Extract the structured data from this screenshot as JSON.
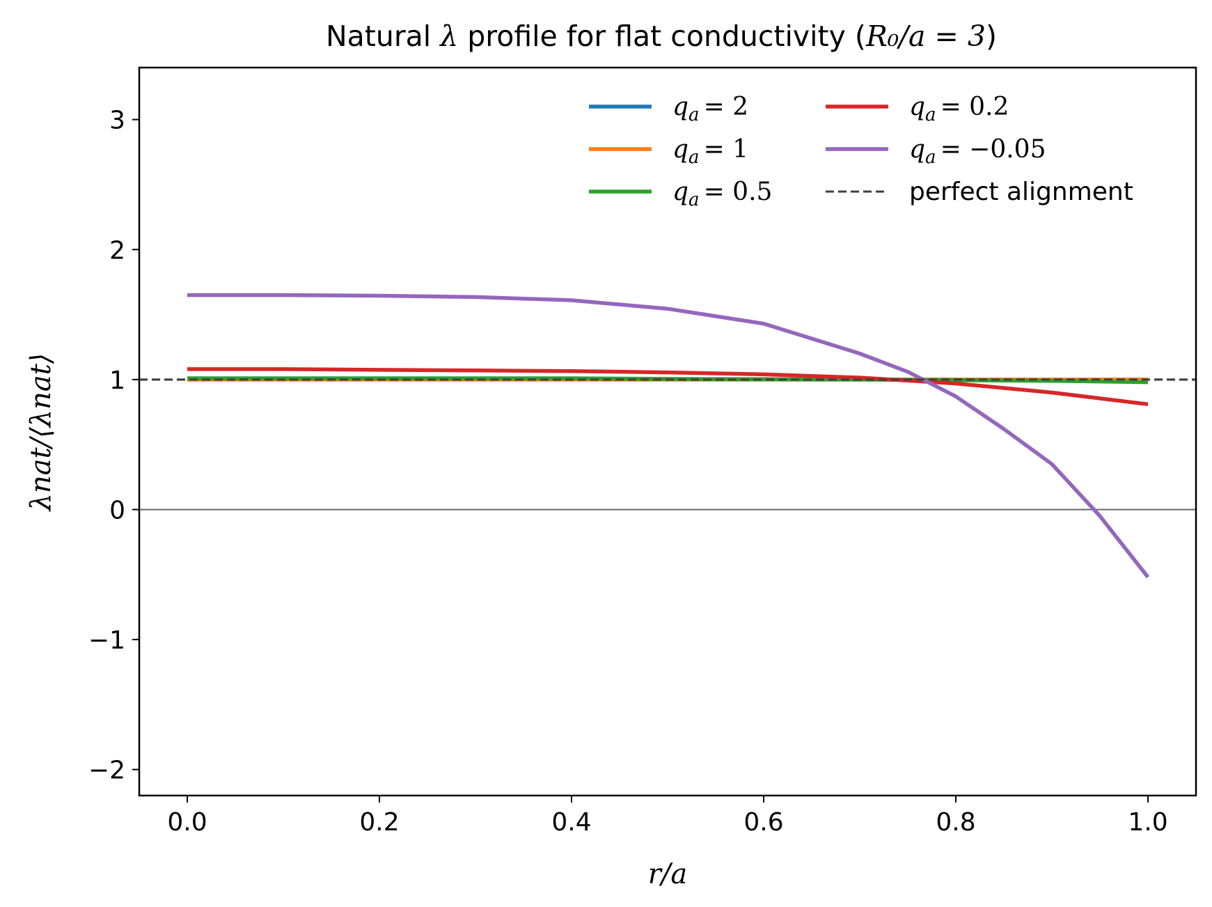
{
  "chart_data": {
    "type": "line",
    "title": {
      "prefix": "Natural ",
      "symbol": "λ",
      "mid": " profile for flat conductivity (",
      "math": "R₀/a = 3",
      "suffix": ")"
    },
    "xlabel": "r/a",
    "ylabel": "λnat/⟨λnat⟩",
    "xlim": [
      -0.05,
      1.05
    ],
    "ylim": [
      -2.2,
      3.4
    ],
    "xticks": [
      "0.0",
      "0.2",
      "0.4",
      "0.6",
      "0.8",
      "1.0"
    ],
    "xtick_values": [
      0.0,
      0.2,
      0.4,
      0.6,
      0.8,
      1.0
    ],
    "yticks": [
      "−2",
      "−1",
      "0",
      "1",
      "2",
      "3"
    ],
    "ytick_values": [
      -2,
      -1,
      0,
      1,
      2,
      3
    ],
    "grid": false,
    "legend_position": "top-right",
    "legend_columns": 2,
    "reference_lines": [
      {
        "name": "perfect alignment",
        "y": 1,
        "style": "dashed",
        "color": "#3f3f3f"
      },
      {
        "name": "",
        "y": 0,
        "style": "solid",
        "color": "#666666"
      }
    ],
    "series": [
      {
        "name": "q_a = 2",
        "label": {
          "var": "q",
          "sub": "a",
          "rhs": "= 2"
        },
        "color": "#1f77b4",
        "x": [
          0,
          0.1,
          0.2,
          0.3,
          0.4,
          0.5,
          0.6,
          0.7,
          0.8,
          0.9,
          1.0
        ],
        "y": [
          1.0,
          1.0,
          1.0,
          1.0,
          1.0,
          1.0,
          1.0,
          1.0,
          1.0,
          1.0,
          1.0
        ]
      },
      {
        "name": "q_a = 1",
        "label": {
          "var": "q",
          "sub": "a",
          "rhs": "= 1"
        },
        "color": "#ff7f0e",
        "x": [
          0,
          0.1,
          0.2,
          0.3,
          0.4,
          0.5,
          0.6,
          0.7,
          0.8,
          0.9,
          1.0
        ],
        "y": [
          1.0,
          1.0,
          1.0,
          1.0,
          1.0,
          1.0,
          1.0,
          1.0,
          1.0,
          1.0,
          1.0
        ]
      },
      {
        "name": "q_a = 0.5",
        "label": {
          "var": "q",
          "sub": "a",
          "rhs": "= 0.5"
        },
        "color": "#2ca02c",
        "x": [
          0,
          0.1,
          0.2,
          0.3,
          0.4,
          0.5,
          0.6,
          0.7,
          0.8,
          0.9,
          1.0
        ],
        "y": [
          1.01,
          1.01,
          1.01,
          1.01,
          1.01,
          1.005,
          1.003,
          1.0,
          0.995,
          0.99,
          0.98
        ]
      },
      {
        "name": "q_a = 0.2",
        "label": {
          "var": "q",
          "sub": "a",
          "rhs": "= 0.2"
        },
        "color": "#d62728",
        "x": [
          0,
          0.1,
          0.2,
          0.3,
          0.4,
          0.5,
          0.6,
          0.7,
          0.8,
          0.9,
          1.0
        ],
        "y": [
          1.08,
          1.08,
          1.075,
          1.07,
          1.065,
          1.055,
          1.04,
          1.015,
          0.97,
          0.9,
          0.81
        ]
      },
      {
        "name": "q_a = −0.05",
        "label": {
          "var": "q",
          "sub": "a",
          "rhs": "= −0.05"
        },
        "color": "#9467bd",
        "x": [
          0,
          0.1,
          0.2,
          0.3,
          0.4,
          0.5,
          0.6,
          0.7,
          0.75,
          0.8,
          0.85,
          0.9,
          0.95,
          1.0
        ],
        "y": [
          1.65,
          1.65,
          1.645,
          1.635,
          1.61,
          1.545,
          1.43,
          1.2,
          1.06,
          0.87,
          0.62,
          0.35,
          -0.05,
          -0.52
        ]
      }
    ]
  }
}
